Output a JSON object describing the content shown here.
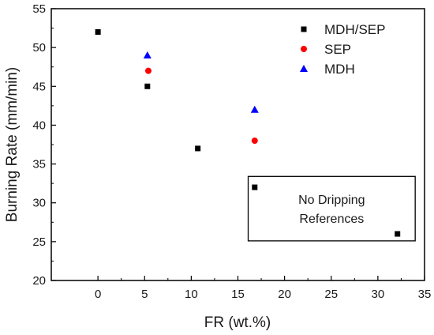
{
  "chart_data": {
    "type": "scatter",
    "xlabel": "FR (wt.%)",
    "ylabel": "Burning Rate (mm/min)",
    "xlim": [
      -5,
      35
    ],
    "ylim": [
      20,
      55
    ],
    "xticks": [
      "0",
      "5",
      "10",
      "15",
      "20",
      "25",
      "30",
      "35"
    ],
    "yticks": [
      "20",
      "25",
      "30",
      "35",
      "40",
      "45",
      "50",
      "55"
    ],
    "legend_position": "top-right",
    "series": [
      {
        "name": "MDH/SEP",
        "marker": "square",
        "color": "#000000",
        "points": [
          {
            "x": 0,
            "y": 52
          },
          {
            "x": 5.3,
            "y": 45
          },
          {
            "x": 10.7,
            "y": 37
          },
          {
            "x": 16.8,
            "y": 32
          },
          {
            "x": 32.1,
            "y": 26
          }
        ]
      },
      {
        "name": "SEP",
        "marker": "circle",
        "color": "#ff0000",
        "points": [
          {
            "x": 5.4,
            "y": 47
          },
          {
            "x": 16.8,
            "y": 38
          }
        ]
      },
      {
        "name": "MDH",
        "marker": "triangle",
        "color": "#0000ff",
        "points": [
          {
            "x": 5.3,
            "y": 49
          },
          {
            "x": 16.8,
            "y": 42
          }
        ]
      }
    ],
    "annotation": {
      "lines": [
        "No Dripping",
        "References"
      ],
      "box_x_range": [
        16.1,
        34.0
      ],
      "box_y_range": [
        25.1,
        33.4
      ]
    }
  }
}
